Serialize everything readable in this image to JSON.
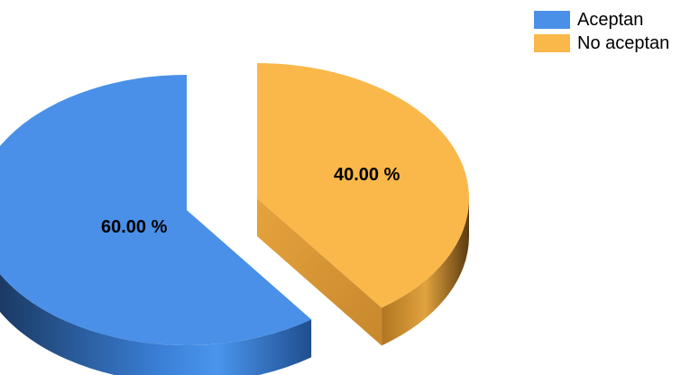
{
  "chart_data": {
    "type": "pie",
    "style": "3d-exploded",
    "title": "",
    "series": [
      {
        "name": "Aceptan",
        "value": 60.0,
        "label": "60.00 %",
        "color": "#4A90E8"
      },
      {
        "name": "No aceptan",
        "value": 40.0,
        "label": "40.00 %",
        "color": "#FAB84A"
      }
    ],
    "legend_position": "top-right"
  }
}
